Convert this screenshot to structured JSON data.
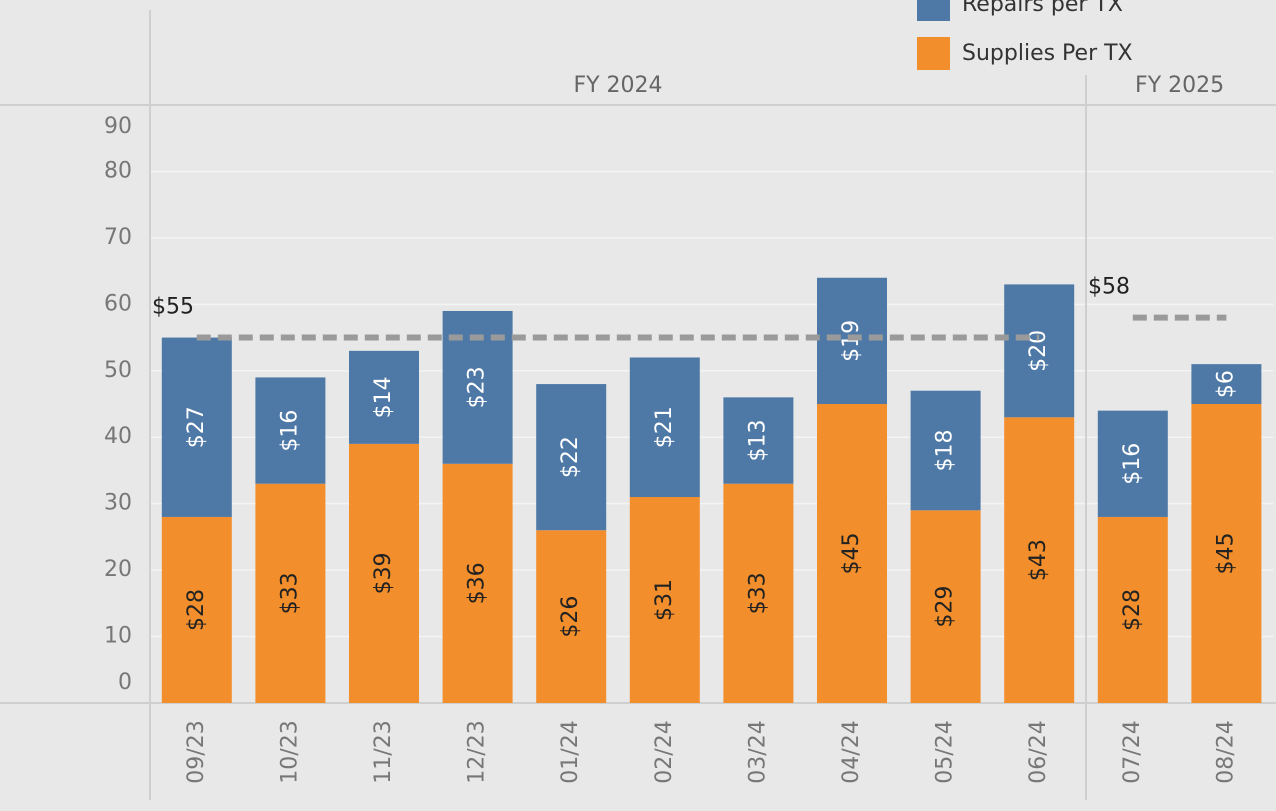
{
  "chart_data": {
    "type": "stacked_bar",
    "categories": [
      "09/23",
      "10/23",
      "11/23",
      "12/23",
      "01/24",
      "02/24",
      "03/24",
      "04/24",
      "05/24",
      "06/24",
      "07/24",
      "08/24"
    ],
    "groups": [
      {
        "label": "FY 2024",
        "size": 10
      },
      {
        "label": "FY 2025",
        "size": 2
      }
    ],
    "series": [
      {
        "name": "Supplies Per TX",
        "color": "#f28e2b",
        "values": [
          28,
          33,
          39,
          36,
          26,
          31,
          33,
          45,
          29,
          43,
          28,
          45
        ],
        "value_labels": [
          "$28",
          "$33",
          "$39",
          "$36",
          "$26",
          "$31",
          "$33",
          "$45",
          "$29",
          "$43",
          "$28",
          "$45"
        ]
      },
      {
        "name": "Repairs per TX",
        "color": "#4e79a7",
        "values": [
          27,
          16,
          14,
          23,
          22,
          21,
          13,
          19,
          18,
          20,
          16,
          6
        ],
        "value_labels": [
          "$27",
          "$16",
          "$14",
          "$23",
          "$22",
          "$21",
          "$13",
          "$19",
          "$18",
          "$20",
          "$16",
          "$6"
        ]
      }
    ],
    "reference_lines": [
      {
        "group": 0,
        "value": 55,
        "label": "$55"
      },
      {
        "group": 1,
        "value": 58,
        "label": "$58"
      }
    ],
    "ylim": [
      0,
      90
    ],
    "yticks": [
      0,
      10,
      20,
      30,
      40,
      50,
      60,
      70,
      80,
      90
    ],
    "grid": true
  }
}
